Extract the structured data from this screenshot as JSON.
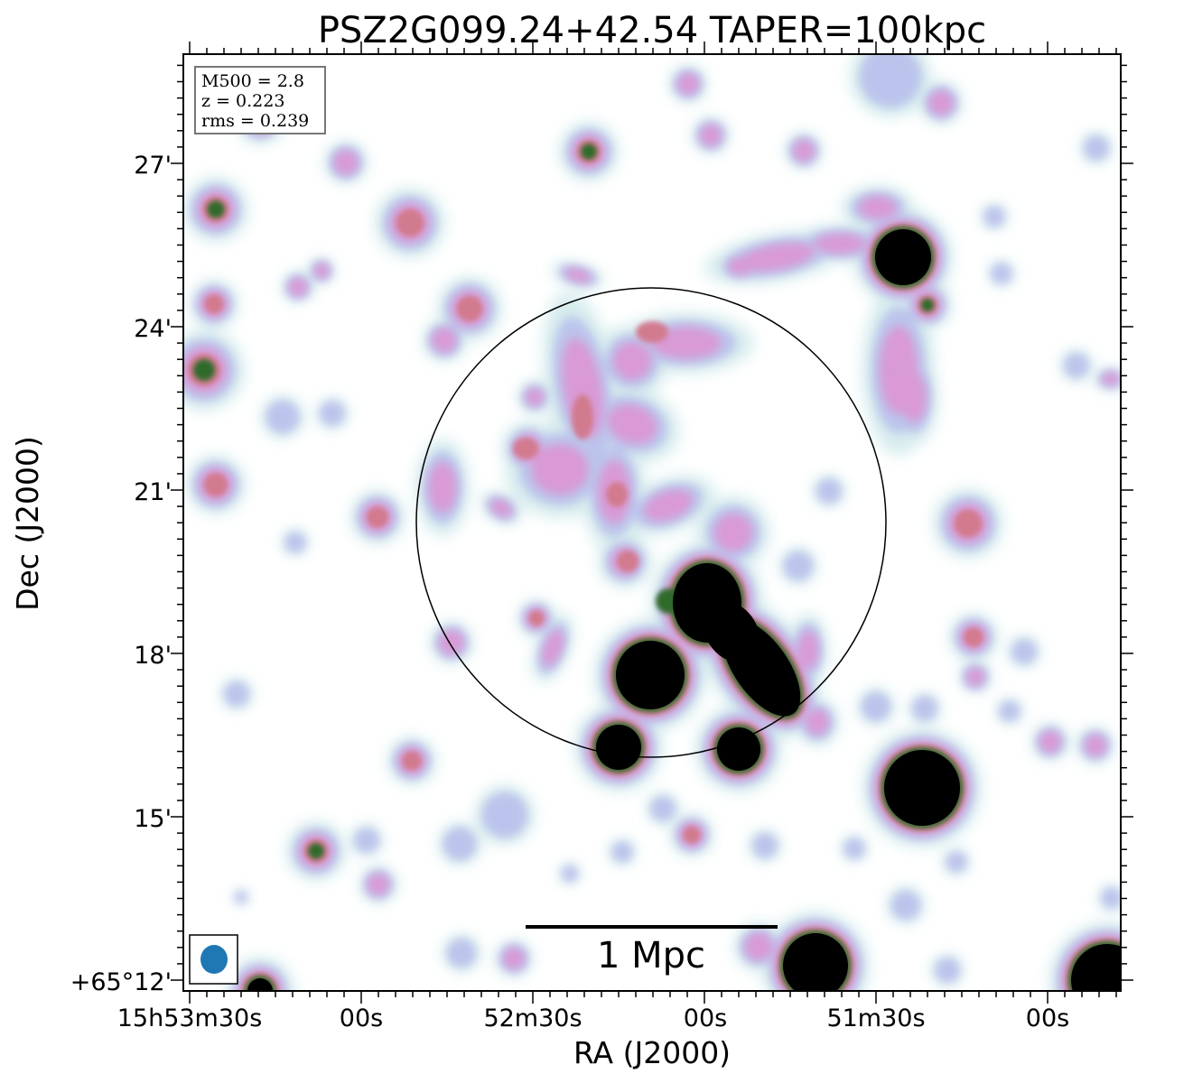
{
  "title": "PSZ2G099.24+42.54 TAPER=100kpc",
  "xlabel": "RA (J2000)",
  "ylabel": "Dec (J2000)",
  "x_ticks": [
    "15h53m30s",
    "00s",
    "52m30s",
    "00s",
    "51m30s",
    "00s"
  ],
  "y_ticks": [
    "27'",
    "24'",
    "21'",
    "18'",
    "15'",
    "+65°12'"
  ],
  "info": {
    "m500": "M500 = 2.8",
    "z": "z = 0.223",
    "rms": "rms = 0.239"
  },
  "scalebar_label": "1 Mpc",
  "colors": {
    "faint": "#cfe8ea",
    "low": "#b9c0ec",
    "mid": "#d99ad6",
    "high": "#d27a8e",
    "peak": "#2f6b2c",
    "saturated": "#000000",
    "beam": "#1f77b4"
  },
  "icons": {
    "beam": "beam-ellipse-icon"
  }
}
